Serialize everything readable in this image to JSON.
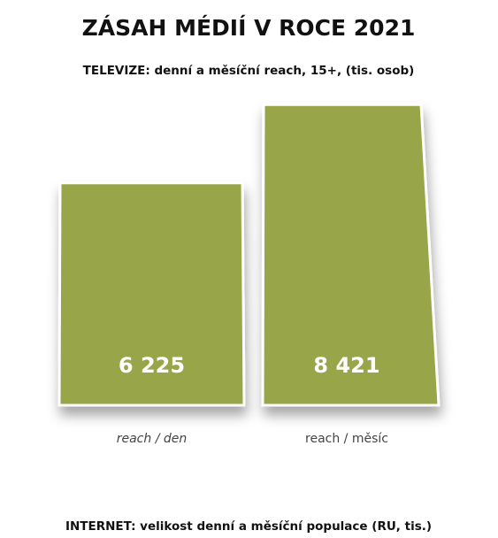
{
  "chart_data": {
    "type": "bar",
    "title": "ZÁSAH MÉDIÍ V ROCE 2021",
    "subtitle": "TELEVIZE: denní a měsíční reach, 15+, (tis. osob)",
    "categories": [
      "reach / den",
      "reach / měsíc"
    ],
    "values": [
      6225,
      8421
    ],
    "value_labels": [
      "6 225",
      "8 421"
    ],
    "color": "#98a548",
    "ylim": [
      0,
      8500
    ],
    "annotation": "INTERNET: velikost denní a měsíční populace (RU, tis.)"
  }
}
